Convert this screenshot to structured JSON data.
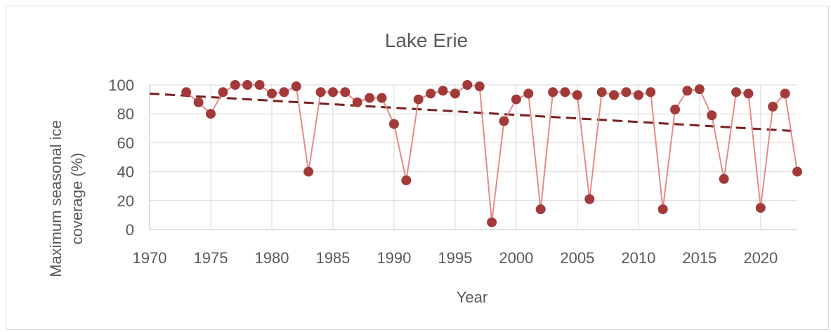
{
  "chart_data": {
    "type": "line",
    "title": "Lake Erie",
    "xlabel": "Year",
    "ylabel": "Maximum seasonal ice coverage (%)",
    "xlim": [
      1970,
      2023
    ],
    "ylim": [
      0,
      100
    ],
    "xticks": [
      1970,
      1975,
      1980,
      1985,
      1990,
      1995,
      2000,
      2005,
      2010,
      2015,
      2020
    ],
    "yticks": [
      0,
      20,
      40,
      60,
      80,
      100
    ],
    "grid": true,
    "legend": "none",
    "series": [
      {
        "x": [
          1973,
          1974,
          1975,
          1976,
          1977,
          1978,
          1979,
          1980,
          1981,
          1982,
          1983,
          1984,
          1985,
          1986,
          1987,
          1988,
          1989,
          1990,
          1991,
          1992,
          1993,
          1994,
          1995,
          1996,
          1997,
          1998,
          1999,
          2000,
          2001,
          2002,
          2003,
          2004,
          2005,
          2006,
          2007,
          2008,
          2009,
          2010,
          2011,
          2012,
          2013,
          2014,
          2015,
          2016,
          2017,
          2018,
          2019,
          2020,
          2021,
          2022,
          2023
        ],
        "y": [
          95,
          88,
          80,
          95,
          100,
          100,
          100,
          94,
          95,
          99,
          40,
          95,
          95,
          95,
          88,
          91,
          91,
          73,
          34,
          90,
          94,
          96,
          94,
          100,
          99,
          5,
          75,
          90,
          94,
          14,
          95,
          95,
          93,
          21,
          95,
          93,
          95,
          93,
          95,
          14,
          83,
          96,
          97,
          79,
          35,
          95,
          94,
          15,
          85,
          94,
          40
        ],
        "color": "#e58a8a",
        "marker_color": "#a33a3a"
      }
    ],
    "trendline": {
      "x": [
        1970,
        2023
      ],
      "y": [
        94,
        68
      ],
      "color": "#7a1f1f",
      "style": "dashed"
    }
  }
}
